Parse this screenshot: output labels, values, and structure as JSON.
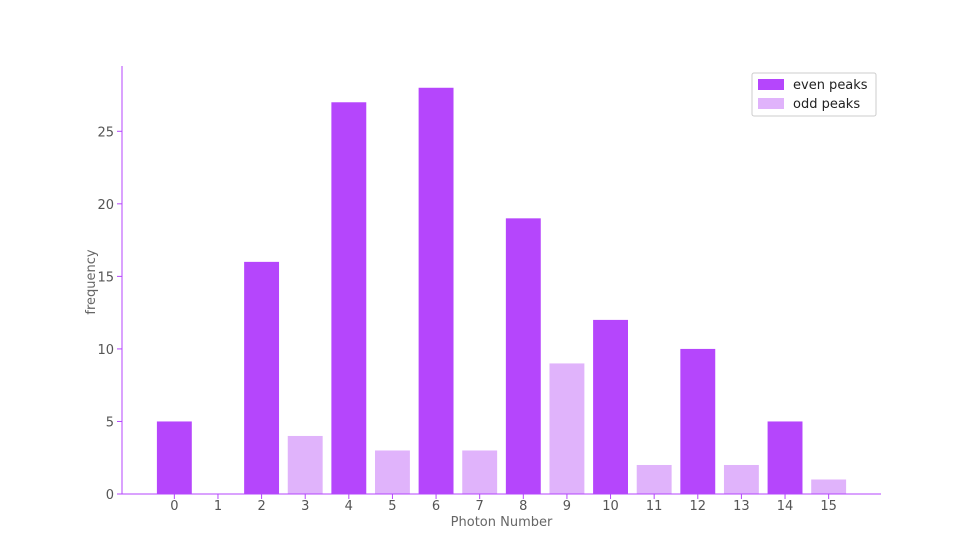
{
  "chart_data": {
    "type": "bar",
    "xlabel": "Photon Number",
    "ylabel": "frequency",
    "categories": [
      "0",
      "1",
      "2",
      "3",
      "4",
      "5",
      "6",
      "7",
      "8",
      "9",
      "10",
      "11",
      "12",
      "13",
      "14",
      "15"
    ],
    "series": [
      {
        "name": "even peaks",
        "x": [
          0,
          2,
          4,
          6,
          8,
          10,
          12,
          14
        ],
        "values": [
          5,
          16,
          27,
          28,
          19,
          12,
          10,
          5
        ],
        "color": "#b546fc"
      },
      {
        "name": "odd peaks",
        "x": [
          1,
          3,
          5,
          7,
          9,
          11,
          13,
          15
        ],
        "values": [
          0,
          4,
          3,
          3,
          9,
          2,
          2,
          1
        ],
        "color": "#e0b3fb"
      }
    ],
    "yticks": [
      0,
      5,
      10,
      15,
      20,
      25
    ],
    "ylim": [
      0,
      29.5
    ],
    "xlim": [
      -1.2,
      16.2
    ],
    "legend_position": "top-right",
    "grid": false,
    "axis_color": "#b546fc"
  }
}
